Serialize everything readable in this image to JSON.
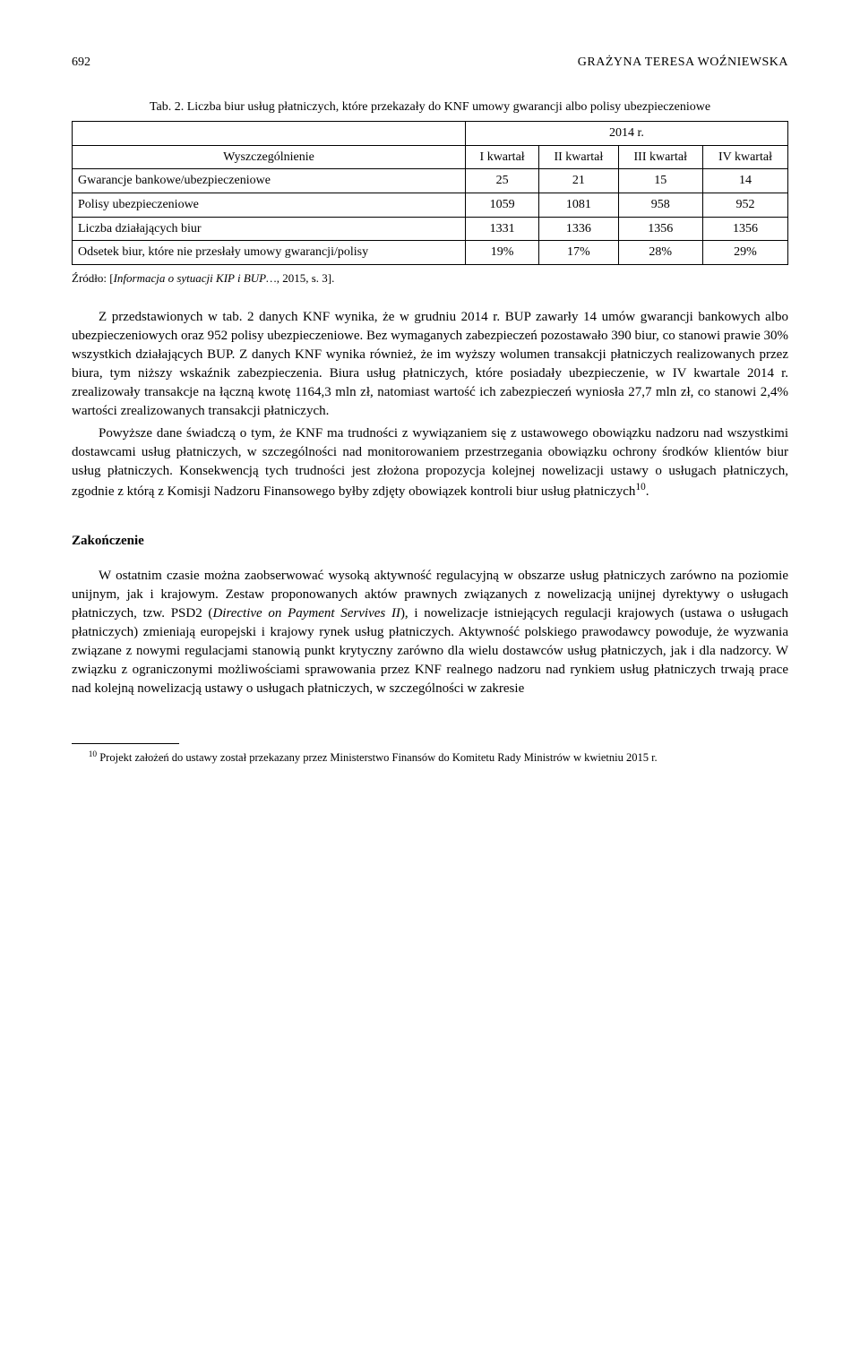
{
  "header": {
    "page_number": "692",
    "running_head": "GRAŻYNA TERESA WOŹNIEWSKA"
  },
  "table": {
    "type": "table",
    "caption": "Tab. 2. Liczba biur usług płatniczych, które przekazały do KNF umowy gwarancji albo polisy ubezpieczeniowe",
    "year_header": "2014 r.",
    "columns": [
      "Wyszczególnienie",
      "I kwartał",
      "II kwartał",
      "III kwartał",
      "IV kwartał"
    ],
    "rows": [
      {
        "label": "Gwarancje bankowe/ubezpieczeniowe",
        "vals": [
          "25",
          "21",
          "15",
          "14"
        ]
      },
      {
        "label": "Polisy ubezpieczeniowe",
        "vals": [
          "1059",
          "1081",
          "958",
          "952"
        ]
      },
      {
        "label": "Liczba działających biur",
        "vals": [
          "1331",
          "1336",
          "1356",
          "1356"
        ]
      },
      {
        "label": "Odsetek biur, które nie przesłały umowy gwarancji/polisy",
        "vals": [
          "19%",
          "17%",
          "28%",
          "29%"
        ]
      }
    ],
    "border_color": "#000000",
    "background_color": "#ffffff",
    "font_size": 14,
    "col_widths": [
      "40%",
      "15%",
      "15%",
      "15%",
      "15%"
    ]
  },
  "source": {
    "prefix": "Źródło: [",
    "italic": "Informacja o sytuacji KIP i BUP…",
    "suffix": ", 2015, s. 3]."
  },
  "paragraphs": {
    "p1": "Z przedstawionych w tab. 2 danych KNF wynika, że w grudniu 2014 r. BUP zawarły 14 umów gwarancji bankowych albo ubezpieczeniowych oraz 952 polisy ubezpieczeniowe. Bez wymaganych zabezpieczeń pozostawało 390 biur, co stanowi prawie 30% wszystkich działających BUP. Z danych KNF wynika również, że im wyższy wolumen transakcji płatniczych realizowanych przez biura, tym niższy wskaźnik zabezpieczenia. Biura usług płatniczych, które posiadały ubezpieczenie, w IV kwartale 2014 r. zrealizowały transakcje na łączną kwotę 1164,3 mln zł, natomiast wartość ich zabezpieczeń wyniosła 27,7 mln zł, co stanowi 2,4% wartości zrealizowanych transakcji płatniczych.",
    "p2_a": "Powyższe dane świadczą o tym, że KNF ma trudności z wywiązaniem się z ustawowego obowiązku nadzoru nad wszystkimi dostawcami usług płatniczych, w szczególności nad monitorowaniem przestrzegania obowiązku ochrony środków klientów biur usług płatniczych. Konsekwencją tych trudności jest złożona propozycja kolejnej nowelizacji ustawy o usługach płatniczych, zgodnie z którą z Komisji Nadzoru Finansowego byłby zdjęty obowiązek kontroli biur usług płatniczych",
    "p2_sup": "10",
    "p2_b": "."
  },
  "section_heading": "Zakończenie",
  "conclusion": {
    "p1_a": "W ostatnim czasie można zaobserwować wysoką aktywność regulacyjną w obszarze usług płatniczych zarówno na poziomie unijnym, jak i krajowym. Zestaw proponowanych aktów prawnych związanych z nowelizacją unijnej dyrektywy o usługach płatniczych, tzw. PSD2 (",
    "p1_italic": "Directive on Payment Servives II",
    "p1_b": "), i nowelizacje istniejących regulacji krajowych (ustawa o usługach płatniczych) zmieniają europejski i krajowy rynek usług płatniczych. Aktywność polskiego prawodawcy powoduje, że wyzwania związane z nowymi regulacjami stanowią punkt krytyczny zarówno dla wielu dostawców usług płatniczych, jak i dla nadzorcy. W związku z ograniczonymi możliwościami sprawowania przez KNF realnego nadzoru nad rynkiem usług płatniczych trwają prace nad kolejną nowelizacją ustawy o usługach płatniczych, w szczególności w zakresie"
  },
  "footnote": {
    "marker": "10",
    "text": " Projekt założeń do ustawy został przekazany przez Ministerstwo Finansów do Komitetu Rady Ministrów w kwietniu 2015 r."
  }
}
